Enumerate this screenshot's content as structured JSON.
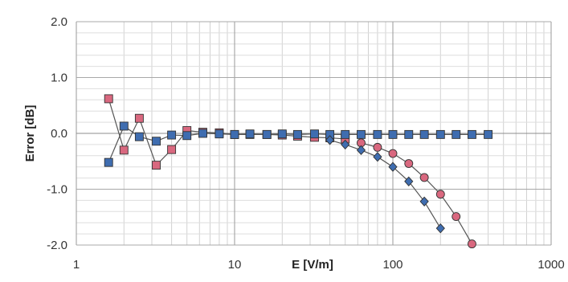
{
  "chart_data": {
    "type": "line",
    "xlabel": "E [V/m]",
    "ylabel": "Error [dB]",
    "xscale": "log",
    "xlim": [
      1,
      1000
    ],
    "ylim": [
      -2.0,
      2.0
    ],
    "x_ticks": [
      "1",
      "10",
      "100",
      "1000"
    ],
    "y_ticks": [
      "2.0",
      "1.0",
      "0.0",
      "-1.0",
      "-2.0"
    ],
    "grid": true,
    "series": [
      {
        "marker": "square",
        "color": "#d9687f",
        "x": [
          1.6,
          2.0,
          2.5,
          3.2,
          4.0,
          5.0,
          6.3,
          8.0,
          10,
          12.5,
          16,
          20,
          25,
          32,
          40,
          50
        ],
        "y": [
          0.62,
          -0.3,
          0.27,
          -0.57,
          -0.29,
          0.05,
          0.02,
          0.01,
          -0.02,
          -0.02,
          -0.02,
          -0.03,
          -0.05,
          -0.07,
          -0.08,
          -0.1
        ]
      },
      {
        "marker": "circle",
        "color": "#d9687f",
        "x": [
          63,
          80,
          100,
          126,
          158,
          200,
          251,
          316
        ],
        "y": [
          -0.17,
          -0.25,
          -0.36,
          -0.54,
          -0.79,
          -1.09,
          -1.49,
          -1.98
        ]
      },
      {
        "marker": "square",
        "color": "#3f6db0",
        "x": [
          1.6,
          2.0,
          2.5,
          3.2,
          4.0,
          5.0,
          6.3,
          8.0,
          10,
          12.5,
          16,
          20,
          25,
          32,
          40,
          50,
          63,
          80,
          100,
          126,
          158,
          200,
          251,
          316,
          400
        ],
        "y": [
          -0.52,
          0.13,
          -0.06,
          -0.14,
          -0.03,
          -0.04,
          0.0,
          -0.01,
          -0.02,
          -0.01,
          -0.02,
          -0.01,
          -0.02,
          -0.01,
          -0.02,
          -0.02,
          -0.02,
          -0.02,
          -0.02,
          -0.02,
          -0.02,
          -0.02,
          -0.02,
          -0.02,
          -0.02
        ]
      },
      {
        "marker": "diamond",
        "color": "#3f6db0",
        "x": [
          40,
          50,
          63,
          80,
          100,
          126,
          158,
          200
        ],
        "y": [
          -0.12,
          -0.2,
          -0.3,
          -0.42,
          -0.6,
          -0.86,
          -1.22,
          -1.7
        ]
      }
    ]
  }
}
